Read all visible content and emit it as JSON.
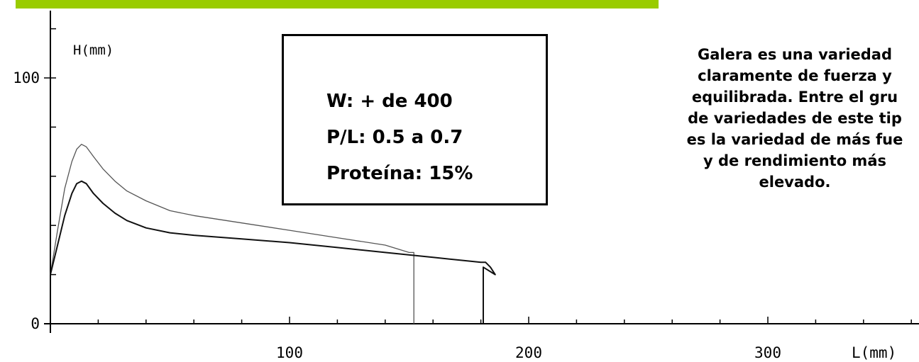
{
  "header": {
    "bar_color": "#99cc00"
  },
  "info_box": {
    "lines": [
      "W: + de 400",
      "P/L: 0.5 a 0.7",
      "Proteína: 15%"
    ]
  },
  "description": {
    "lines": [
      "Galera es una variedad",
      "claramente de fuerza y",
      "equilibrada.  Entre el gru",
      "de variedades de este tip",
      "es la variedad de más fue",
      "y de rendimiento más",
      "elevado."
    ]
  },
  "chart_data": {
    "type": "line",
    "title": "",
    "xlabel": "L(mm)",
    "ylabel": "H(mm)",
    "xlim": [
      0,
      360
    ],
    "ylim": [
      0,
      120
    ],
    "x_tick_labels": [
      {
        "value": 100,
        "label": "100"
      },
      {
        "value": 200,
        "label": "200"
      },
      {
        "value": 300,
        "label": "300"
      }
    ],
    "y_tick_labels": [
      {
        "value": 0,
        "label": "0"
      },
      {
        "value": 100,
        "label": "100"
      }
    ],
    "series": [
      {
        "x": [
          0,
          3,
          6,
          9,
          11,
          13,
          15,
          18,
          22,
          27,
          32,
          40,
          50,
          60,
          80,
          100,
          120,
          140,
          150,
          152,
          152
        ],
        "y": [
          20,
          38,
          55,
          66,
          71,
          73,
          72,
          68,
          63,
          58,
          54,
          50,
          46,
          44,
          41,
          38,
          35,
          32,
          29,
          29,
          0
        ],
        "color": "#555555"
      },
      {
        "x": [
          0,
          3,
          6,
          9,
          11,
          13,
          15,
          18,
          22,
          27,
          32,
          40,
          50,
          60,
          80,
          100,
          120,
          140,
          160,
          175,
          180,
          182,
          184,
          186,
          181,
          181
        ],
        "y": [
          20,
          32,
          44,
          53,
          57,
          58,
          57,
          53,
          49,
          45,
          42,
          39,
          37,
          36,
          34.5,
          33,
          31,
          29,
          27,
          25.5,
          25,
          25,
          23,
          20,
          23,
          0
        ],
        "color": "#111111"
      }
    ]
  }
}
